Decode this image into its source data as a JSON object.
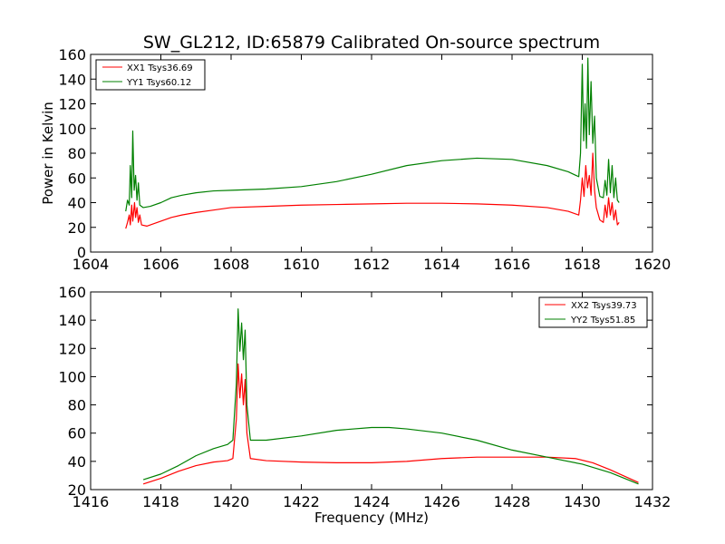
{
  "chart_data": [
    {
      "type": "line",
      "title": "SW_GL212, ID:65879 Calibrated On-source spectrum",
      "xlabel": "",
      "ylabel": "Power in Kelvin",
      "xlim": [
        1604,
        1620
      ],
      "ylim": [
        0,
        160
      ],
      "xticks": [
        1604,
        1606,
        1608,
        1610,
        1612,
        1614,
        1616,
        1618,
        1620
      ],
      "yticks": [
        0,
        20,
        40,
        60,
        80,
        100,
        120,
        140,
        160
      ],
      "legend_position": "top-left",
      "series": [
        {
          "name": "XX1 Tsys36.69",
          "color": "#ff0000",
          "points": [
            [
              1605.0,
              19
            ],
            [
              1605.05,
              24
            ],
            [
              1605.1,
              30
            ],
            [
              1605.13,
              22
            ],
            [
              1605.17,
              38
            ],
            [
              1605.2,
              25
            ],
            [
              1605.25,
              40
            ],
            [
              1605.28,
              28
            ],
            [
              1605.32,
              36
            ],
            [
              1605.36,
              24
            ],
            [
              1605.4,
              30
            ],
            [
              1605.45,
              22
            ],
            [
              1605.6,
              21
            ],
            [
              1605.8,
              23
            ],
            [
              1606.0,
              25
            ],
            [
              1606.3,
              28
            ],
            [
              1606.6,
              30
            ],
            [
              1607.0,
              32
            ],
            [
              1607.5,
              34
            ],
            [
              1608.0,
              36
            ],
            [
              1609.0,
              37
            ],
            [
              1610.0,
              38
            ],
            [
              1611.0,
              38.5
            ],
            [
              1612.0,
              39
            ],
            [
              1613.0,
              39.5
            ],
            [
              1614.0,
              39.5
            ],
            [
              1615.0,
              39
            ],
            [
              1616.0,
              38
            ],
            [
              1617.0,
              36
            ],
            [
              1617.6,
              33
            ],
            [
              1617.9,
              30
            ],
            [
              1617.95,
              42
            ],
            [
              1618.0,
              60
            ],
            [
              1618.05,
              45
            ],
            [
              1618.1,
              70
            ],
            [
              1618.15,
              52
            ],
            [
              1618.2,
              62
            ],
            [
              1618.25,
              46
            ],
            [
              1618.3,
              80
            ],
            [
              1618.35,
              50
            ],
            [
              1618.4,
              36
            ],
            [
              1618.5,
              26
            ],
            [
              1618.6,
              24
            ],
            [
              1618.65,
              38
            ],
            [
              1618.7,
              28
            ],
            [
              1618.75,
              44
            ],
            [
              1618.8,
              30
            ],
            [
              1618.85,
              40
            ],
            [
              1618.9,
              26
            ],
            [
              1618.95,
              34
            ],
            [
              1619.0,
              22
            ],
            [
              1619.05,
              24
            ]
          ]
        },
        {
          "name": "YY1 Tsys60.12",
          "color": "#008000",
          "points": [
            [
              1605.0,
              33
            ],
            [
              1605.05,
              42
            ],
            [
              1605.1,
              38
            ],
            [
              1605.13,
              70
            ],
            [
              1605.17,
              44
            ],
            [
              1605.2,
              98
            ],
            [
              1605.24,
              50
            ],
            [
              1605.28,
              62
            ],
            [
              1605.32,
              42
            ],
            [
              1605.36,
              56
            ],
            [
              1605.4,
              38
            ],
            [
              1605.5,
              36
            ],
            [
              1605.7,
              37
            ],
            [
              1606.0,
              40
            ],
            [
              1606.3,
              44
            ],
            [
              1606.6,
              46
            ],
            [
              1607.0,
              48
            ],
            [
              1607.5,
              49.5
            ],
            [
              1608.0,
              50
            ],
            [
              1609.0,
              51
            ],
            [
              1610.0,
              53
            ],
            [
              1611.0,
              57
            ],
            [
              1612.0,
              63
            ],
            [
              1613.0,
              70
            ],
            [
              1614.0,
              74
            ],
            [
              1615.0,
              76
            ],
            [
              1616.0,
              75
            ],
            [
              1617.0,
              70
            ],
            [
              1617.6,
              65
            ],
            [
              1617.9,
              61
            ],
            [
              1617.95,
              80
            ],
            [
              1618.0,
              152
            ],
            [
              1618.04,
              90
            ],
            [
              1618.08,
              120
            ],
            [
              1618.12,
              84
            ],
            [
              1618.16,
              157
            ],
            [
              1618.2,
              95
            ],
            [
              1618.25,
              138
            ],
            [
              1618.3,
              88
            ],
            [
              1618.35,
              110
            ],
            [
              1618.4,
              60
            ],
            [
              1618.5,
              45
            ],
            [
              1618.6,
              44
            ],
            [
              1618.65,
              58
            ],
            [
              1618.7,
              46
            ],
            [
              1618.75,
              75
            ],
            [
              1618.8,
              48
            ],
            [
              1618.85,
              70
            ],
            [
              1618.9,
              44
            ],
            [
              1618.95,
              60
            ],
            [
              1619.0,
              42
            ],
            [
              1619.05,
              40
            ]
          ]
        }
      ]
    },
    {
      "type": "line",
      "title": "",
      "xlabel": "Frequency (MHz)",
      "ylabel": "",
      "xlim": [
        1416,
        1432
      ],
      "ylim": [
        20,
        160
      ],
      "xticks": [
        1416,
        1418,
        1420,
        1422,
        1424,
        1426,
        1428,
        1430,
        1432
      ],
      "yticks": [
        20,
        40,
        60,
        80,
        100,
        120,
        140,
        160
      ],
      "legend_position": "top-right",
      "series": [
        {
          "name": "XX2 Tsys39.73",
          "color": "#ff0000",
          "points": [
            [
              1417.5,
              24
            ],
            [
              1418.0,
              28
            ],
            [
              1418.5,
              33
            ],
            [
              1419.0,
              37
            ],
            [
              1419.5,
              39.5
            ],
            [
              1419.9,
              40.5
            ],
            [
              1420.05,
              42
            ],
            [
              1420.15,
              70
            ],
            [
              1420.2,
              109
            ],
            [
              1420.25,
              85
            ],
            [
              1420.3,
              102
            ],
            [
              1420.35,
              80
            ],
            [
              1420.4,
              98
            ],
            [
              1420.45,
              60
            ],
            [
              1420.55,
              42
            ],
            [
              1421.0,
              40.5
            ],
            [
              1422.0,
              39.5
            ],
            [
              1423.0,
              39
            ],
            [
              1424.0,
              39
            ],
            [
              1425.0,
              40
            ],
            [
              1426.0,
              42
            ],
            [
              1427.0,
              43
            ],
            [
              1428.0,
              43
            ],
            [
              1429.0,
              43
            ],
            [
              1429.8,
              42
            ],
            [
              1430.3,
              39
            ],
            [
              1430.8,
              34
            ],
            [
              1431.6,
              25
            ]
          ]
        },
        {
          "name": "YY2 Tsys51.85",
          "color": "#008000",
          "points": [
            [
              1417.5,
              27
            ],
            [
              1418.0,
              31
            ],
            [
              1418.5,
              37
            ],
            [
              1419.0,
              44
            ],
            [
              1419.5,
              49
            ],
            [
              1419.9,
              52
            ],
            [
              1420.05,
              55
            ],
            [
              1420.15,
              95
            ],
            [
              1420.2,
              148
            ],
            [
              1420.25,
              118
            ],
            [
              1420.3,
              138
            ],
            [
              1420.35,
              112
            ],
            [
              1420.4,
              133
            ],
            [
              1420.45,
              80
            ],
            [
              1420.55,
              55
            ],
            [
              1421.0,
              55
            ],
            [
              1422.0,
              58
            ],
            [
              1423.0,
              62
            ],
            [
              1424.0,
              64
            ],
            [
              1424.5,
              64
            ],
            [
              1425.0,
              63
            ],
            [
              1426.0,
              60
            ],
            [
              1427.0,
              55
            ],
            [
              1428.0,
              48
            ],
            [
              1429.0,
              43
            ],
            [
              1430.0,
              38
            ],
            [
              1430.8,
              32
            ],
            [
              1431.6,
              24
            ]
          ]
        }
      ]
    }
  ]
}
